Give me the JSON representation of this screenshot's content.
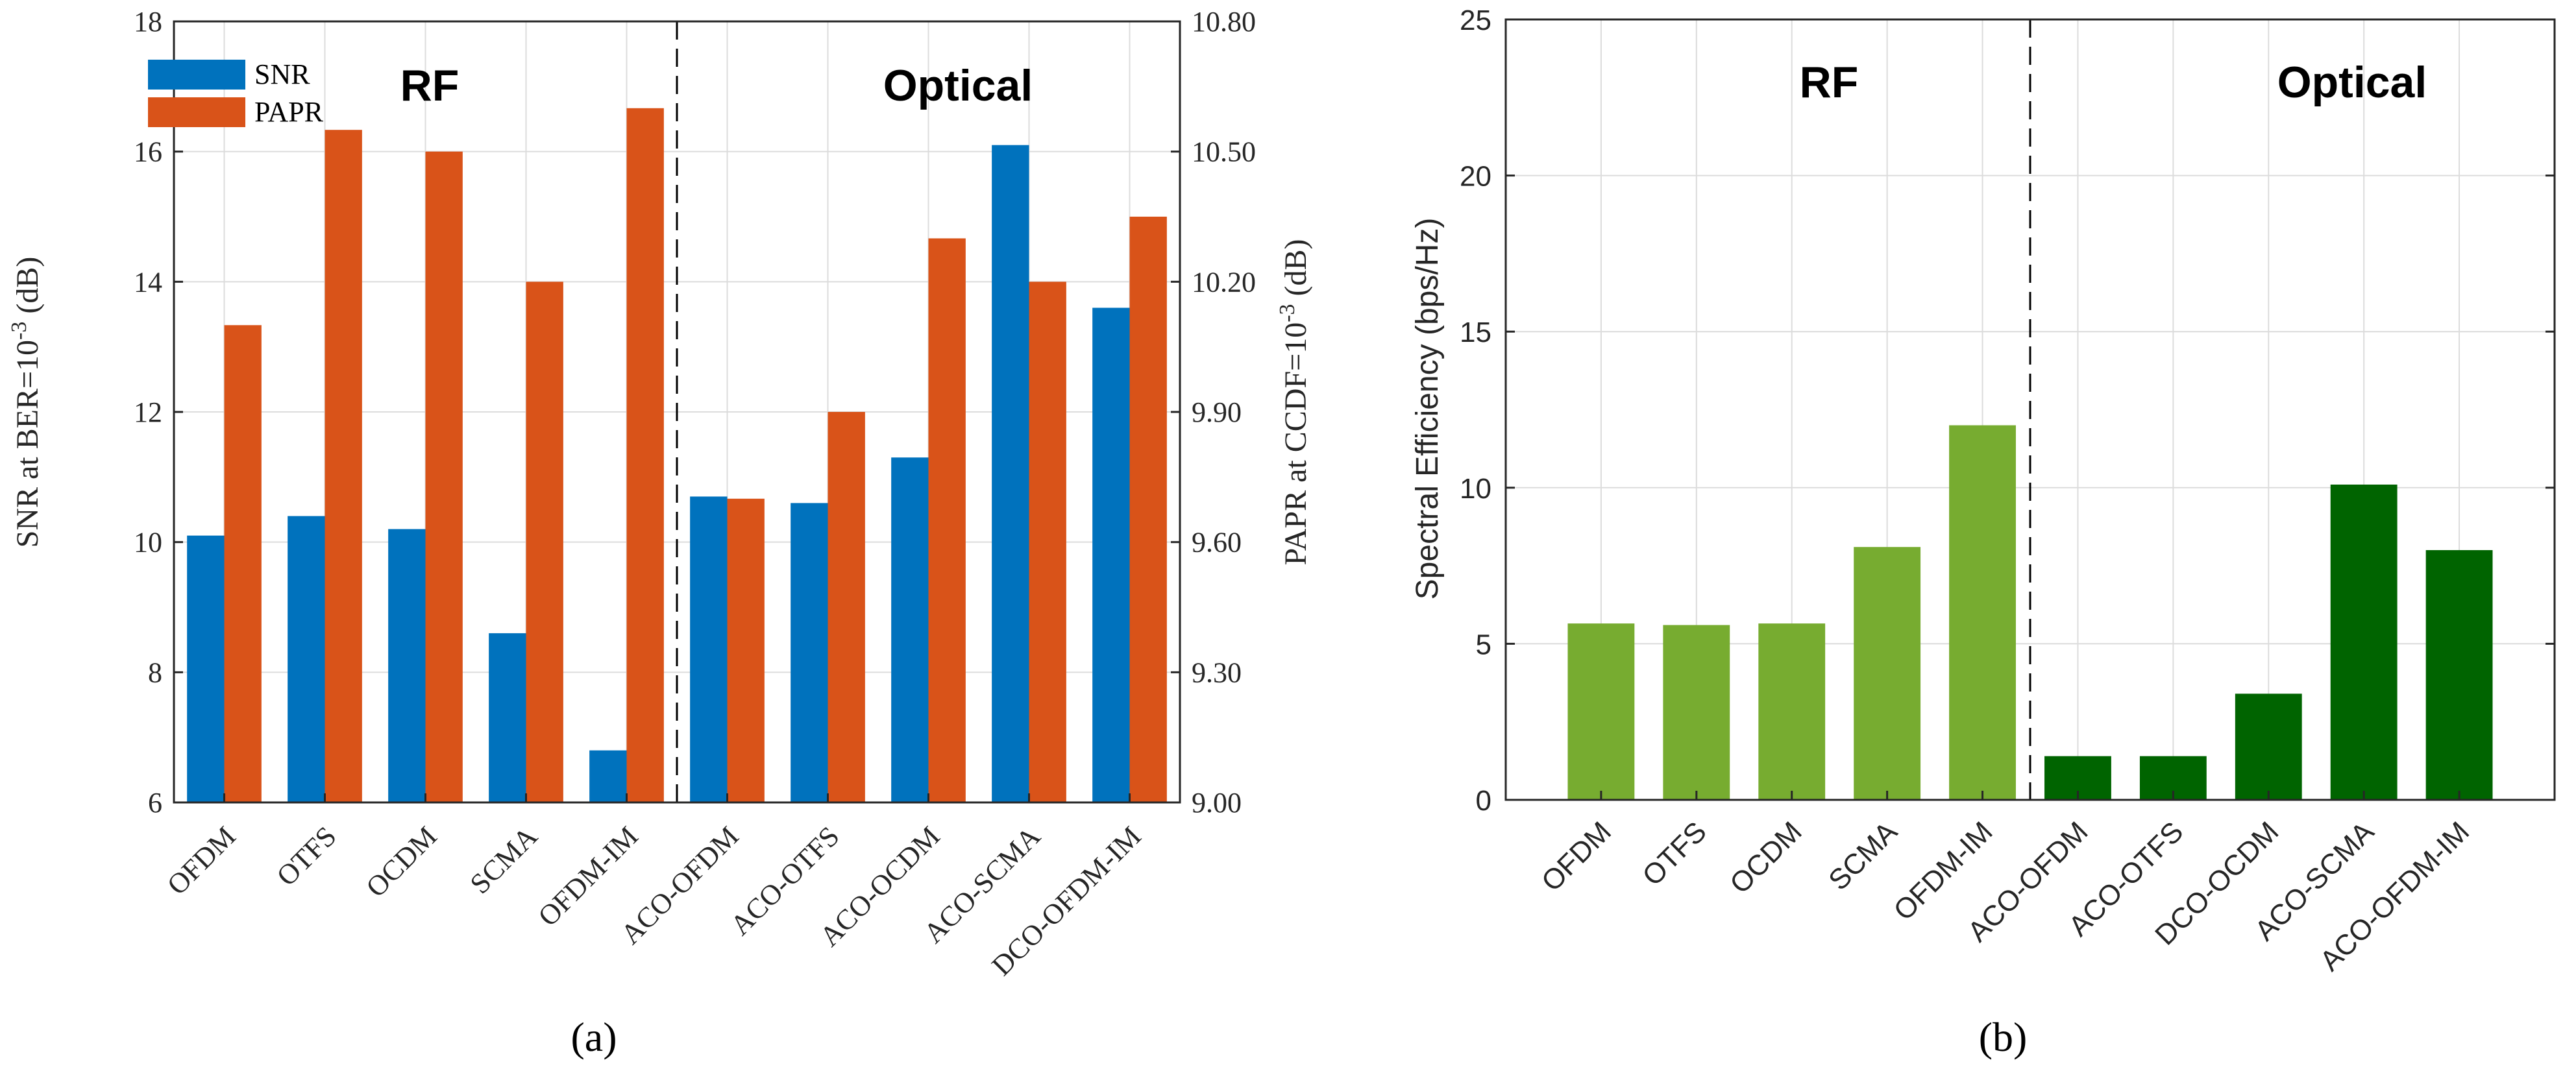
{
  "colors": {
    "snr": "#0072BD",
    "papr": "#D95319",
    "rf_green": "#77AC30",
    "optical_green": "#006400",
    "grid": "#DCDCDC",
    "axis": "#262626"
  },
  "chart_data": [
    {
      "type": "bar",
      "panel_label": "a",
      "caption": "(a)",
      "categories": [
        "OFDM",
        "OTFS",
        "OCDM",
        "SCMA",
        "OFDM-IM",
        "ACO-OFDM",
        "ACO-OTFS",
        "ACO-OCDM",
        "ACO-SCMA",
        "DCO-OFDM-IM"
      ],
      "series": [
        {
          "name": "SNR",
          "axis": "left",
          "values": [
            10.1,
            10.4,
            10.2,
            8.6,
            6.8,
            10.7,
            10.6,
            11.3,
            16.1,
            13.6
          ]
        },
        {
          "name": "PAPR",
          "axis": "right",
          "values": [
            10.1,
            10.55,
            10.5,
            10.2,
            10.6,
            9.7,
            9.9,
            10.3,
            10.2,
            10.35
          ]
        }
      ],
      "ylabel_left": "SNR at BER=10",
      "ylabel_left_sup": "-3",
      "ylabel_left_suffix": " (dB)",
      "ylabel_right": "PAPR at CCDF=10",
      "ylabel_right_sup": "-3",
      "ylabel_right_suffix": " (dB)",
      "ylim_left": [
        6,
        18
      ],
      "ylim_right": [
        9.0,
        10.8
      ],
      "yticks_left": [
        "6",
        "8",
        "10",
        "12",
        "14",
        "16",
        "18"
      ],
      "yticks_right": [
        "9.00",
        "9.30",
        "9.60",
        "9.90",
        "10.20",
        "10.50",
        "10.80"
      ],
      "regions": [
        "RF",
        "Optical"
      ],
      "legend": [
        "SNR",
        "PAPR"
      ],
      "legend_position": "top-left",
      "divider_after_category": 5,
      "grid": true
    },
    {
      "type": "bar",
      "panel_label": "b",
      "caption": "(b)",
      "categories": [
        "OFDM",
        "OTFS",
        "OCDM",
        "SCMA",
        "OFDM-IM",
        "ACO-OFDM",
        "ACO-OTFS",
        "DCO-OCDM",
        "ACO-SCMA",
        "ACO-OFDM-IM"
      ],
      "values": [
        5.65,
        5.6,
        5.65,
        8.1,
        12.0,
        1.4,
        1.4,
        3.4,
        10.1,
        8.0
      ],
      "groups": [
        "rf",
        "rf",
        "rf",
        "rf",
        "rf",
        "optical",
        "optical",
        "optical",
        "optical",
        "optical"
      ],
      "ylabel": "Spectral Efficiency (bps/Hz)",
      "ylim": [
        0,
        25
      ],
      "yticks": [
        "0",
        "5",
        "10",
        "15",
        "20",
        "25"
      ],
      "regions": [
        "RF",
        "Optical"
      ],
      "divider_after_category": 5,
      "grid": true
    }
  ]
}
